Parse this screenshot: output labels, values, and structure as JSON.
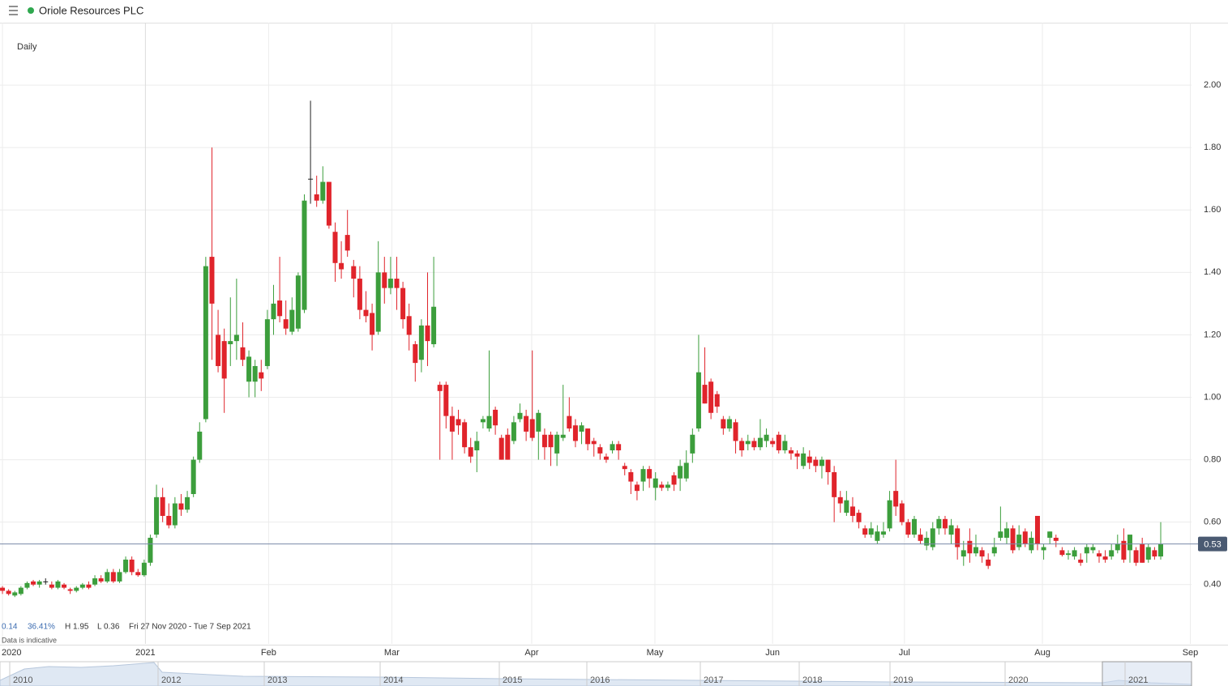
{
  "header": {
    "title": "Oriole Resources PLC",
    "interval": "Daily"
  },
  "chart_data": {
    "type": "candlestick",
    "up_color": "#3c9e3c",
    "down_color": "#e0242b",
    "doji_color": "#222222",
    "grid": true,
    "ylim": [
      0.21,
      2.2
    ],
    "yticks": [
      {
        "value": 0.4,
        "label": "0.40"
      },
      {
        "value": 0.6,
        "label": "0.60"
      },
      {
        "value": 0.8,
        "label": "0.80"
      },
      {
        "value": 1.0,
        "label": "1.00"
      },
      {
        "value": 1.2,
        "label": "1.20"
      },
      {
        "value": 1.4,
        "label": "1.40"
      },
      {
        "value": 1.6,
        "label": "1.60"
      },
      {
        "value": 1.8,
        "label": "1.80"
      },
      {
        "value": 2.0,
        "label": "2.00"
      }
    ],
    "xlim": [
      -0.4,
      193
    ],
    "xticks": [
      {
        "value": 0,
        "label": "2020"
      },
      {
        "value": 23.2,
        "label": "2021"
      },
      {
        "value": 43.2,
        "label": "Feb"
      },
      {
        "value": 63.2,
        "label": "Mar"
      },
      {
        "value": 85.9,
        "label": "Apr"
      },
      {
        "value": 105.9,
        "label": "May"
      },
      {
        "value": 125,
        "label": "Jun"
      },
      {
        "value": 146.4,
        "label": "Jul"
      },
      {
        "value": 168.8,
        "label": "Aug"
      },
      {
        "value": 192.8,
        "label": "Sep"
      }
    ],
    "last_price": 0.53,
    "ohlc": [
      [
        0.39,
        0.395,
        0.37,
        0.38
      ],
      [
        0.38,
        0.385,
        0.365,
        0.37
      ],
      [
        0.365,
        0.38,
        0.36,
        0.375
      ],
      [
        0.37,
        0.395,
        0.365,
        0.39
      ],
      [
        0.39,
        0.41,
        0.385,
        0.405
      ],
      [
        0.41,
        0.415,
        0.395,
        0.4
      ],
      [
        0.4,
        0.415,
        0.39,
        0.41
      ],
      [
        0.41,
        0.42,
        0.4,
        0.41
      ],
      [
        0.4,
        0.41,
        0.385,
        0.39
      ],
      [
        0.39,
        0.415,
        0.385,
        0.41
      ],
      [
        0.4,
        0.405,
        0.385,
        0.39
      ],
      [
        0.385,
        0.39,
        0.37,
        0.38
      ],
      [
        0.38,
        0.395,
        0.375,
        0.39
      ],
      [
        0.39,
        0.405,
        0.385,
        0.4
      ],
      [
        0.4,
        0.41,
        0.385,
        0.39
      ],
      [
        0.4,
        0.43,
        0.395,
        0.42
      ],
      [
        0.42,
        0.43,
        0.405,
        0.41
      ],
      [
        0.41,
        0.45,
        0.405,
        0.44
      ],
      [
        0.44,
        0.45,
        0.405,
        0.41
      ],
      [
        0.41,
        0.45,
        0.405,
        0.44
      ],
      [
        0.44,
        0.49,
        0.435,
        0.48
      ],
      [
        0.48,
        0.49,
        0.43,
        0.44
      ],
      [
        0.44,
        0.45,
        0.425,
        0.43
      ],
      [
        0.43,
        0.48,
        0.425,
        0.47
      ],
      [
        0.47,
        0.56,
        0.46,
        0.55
      ],
      [
        0.56,
        0.72,
        0.55,
        0.68
      ],
      [
        0.68,
        0.71,
        0.6,
        0.62
      ],
      [
        0.62,
        0.66,
        0.58,
        0.59
      ],
      [
        0.59,
        0.68,
        0.58,
        0.66
      ],
      [
        0.66,
        0.69,
        0.62,
        0.64
      ],
      [
        0.64,
        0.7,
        0.63,
        0.68
      ],
      [
        0.69,
        0.81,
        0.68,
        0.8
      ],
      [
        0.8,
        0.92,
        0.79,
        0.89
      ],
      [
        0.93,
        1.45,
        0.92,
        1.42
      ],
      [
        1.45,
        1.8,
        1.12,
        1.3
      ],
      [
        1.2,
        1.28,
        1.08,
        1.1
      ],
      [
        1.18,
        1.22,
        0.95,
        1.06
      ],
      [
        1.17,
        1.32,
        1.1,
        1.18
      ],
      [
        1.18,
        1.38,
        1.12,
        1.2
      ],
      [
        1.16,
        1.24,
        1.1,
        1.12
      ],
      [
        1.05,
        1.15,
        1.0,
        1.13
      ],
      [
        1.05,
        1.12,
        1.0,
        1.1
      ],
      [
        1.08,
        1.12,
        1.02,
        1.06
      ],
      [
        1.1,
        1.28,
        1.09,
        1.25
      ],
      [
        1.25,
        1.36,
        1.2,
        1.3
      ],
      [
        1.31,
        1.45,
        1.24,
        1.26
      ],
      [
        1.25,
        1.31,
        1.2,
        1.22
      ],
      [
        1.21,
        1.32,
        1.2,
        1.28
      ],
      [
        1.22,
        1.4,
        1.21,
        1.39
      ],
      [
        1.28,
        1.65,
        1.27,
        1.63
      ],
      [
        1.7,
        1.95,
        1.62,
        1.7
      ],
      [
        1.65,
        1.71,
        1.61,
        1.63
      ],
      [
        1.63,
        1.74,
        1.62,
        1.69
      ],
      [
        1.69,
        1.69,
        1.54,
        1.55
      ],
      [
        1.53,
        1.56,
        1.37,
        1.43
      ],
      [
        1.43,
        1.5,
        1.38,
        1.41
      ],
      [
        1.52,
        1.6,
        1.45,
        1.47
      ],
      [
        1.42,
        1.44,
        1.32,
        1.38
      ],
      [
        1.38,
        1.42,
        1.25,
        1.28
      ],
      [
        1.28,
        1.34,
        1.24,
        1.26
      ],
      [
        1.27,
        1.3,
        1.15,
        1.2
      ],
      [
        1.21,
        1.5,
        1.2,
        1.4
      ],
      [
        1.4,
        1.45,
        1.3,
        1.35
      ],
      [
        1.35,
        1.45,
        1.33,
        1.38
      ],
      [
        1.38,
        1.45,
        1.28,
        1.35
      ],
      [
        1.35,
        1.37,
        1.22,
        1.25
      ],
      [
        1.26,
        1.3,
        1.15,
        1.2
      ],
      [
        1.17,
        1.18,
        1.05,
        1.11
      ],
      [
        1.12,
        1.25,
        1.08,
        1.23
      ],
      [
        1.23,
        1.4,
        1.1,
        1.18
      ],
      [
        1.17,
        1.45,
        1.16,
        1.29
      ],
      [
        1.04,
        1.05,
        0.8,
        1.02
      ],
      [
        1.04,
        1.05,
        0.9,
        0.94
      ],
      [
        0.94,
        0.97,
        0.8,
        0.89
      ],
      [
        0.93,
        0.96,
        0.88,
        0.91
      ],
      [
        0.92,
        0.93,
        0.82,
        0.84
      ],
      [
        0.84,
        0.87,
        0.79,
        0.81
      ],
      [
        0.83,
        0.89,
        0.76,
        0.86
      ],
      [
        0.92,
        0.94,
        0.9,
        0.93
      ],
      [
        0.9,
        1.15,
        0.89,
        0.94
      ],
      [
        0.96,
        0.97,
        0.88,
        0.91
      ],
      [
        0.87,
        0.88,
        0.8,
        0.8
      ],
      [
        0.88,
        0.9,
        0.8,
        0.8
      ],
      [
        0.86,
        0.94,
        0.85,
        0.92
      ],
      [
        0.93,
        0.98,
        0.92,
        0.95
      ],
      [
        0.94,
        0.96,
        0.86,
        0.89
      ],
      [
        0.93,
        1.15,
        0.86,
        0.87
      ],
      [
        0.89,
        0.96,
        0.8,
        0.95
      ],
      [
        0.88,
        0.9,
        0.8,
        0.84
      ],
      [
        0.88,
        0.89,
        0.78,
        0.84
      ],
      [
        0.82,
        0.89,
        0.78,
        0.88
      ],
      [
        0.87,
        1.04,
        0.86,
        0.88
      ],
      [
        0.94,
        1.0,
        0.89,
        0.9
      ],
      [
        0.91,
        0.93,
        0.84,
        0.86
      ],
      [
        0.89,
        0.92,
        0.85,
        0.91
      ],
      [
        0.9,
        0.9,
        0.83,
        0.85
      ],
      [
        0.86,
        0.87,
        0.81,
        0.85
      ],
      [
        0.84,
        0.85,
        0.8,
        0.82
      ],
      [
        0.81,
        0.82,
        0.79,
        0.8
      ],
      [
        0.83,
        0.86,
        0.82,
        0.85
      ],
      [
        0.85,
        0.86,
        0.8,
        0.83
      ],
      [
        0.78,
        0.79,
        0.75,
        0.77
      ],
      [
        0.76,
        0.77,
        0.69,
        0.73
      ],
      [
        0.72,
        0.73,
        0.67,
        0.7
      ],
      [
        0.73,
        0.78,
        0.7,
        0.77
      ],
      [
        0.77,
        0.78,
        0.71,
        0.74
      ],
      [
        0.71,
        0.76,
        0.67,
        0.74
      ],
      [
        0.72,
        0.73,
        0.7,
        0.71
      ],
      [
        0.71,
        0.73,
        0.7,
        0.72
      ],
      [
        0.75,
        0.76,
        0.7,
        0.72
      ],
      [
        0.74,
        0.8,
        0.7,
        0.78
      ],
      [
        0.74,
        0.83,
        0.73,
        0.79
      ],
      [
        0.82,
        0.9,
        0.79,
        0.88
      ],
      [
        0.9,
        1.2,
        0.89,
        1.08
      ],
      [
        1.04,
        1.16,
        0.98,
        0.98
      ],
      [
        1.05,
        1.06,
        0.93,
        0.95
      ],
      [
        1.01,
        1.02,
        0.95,
        0.97
      ],
      [
        0.93,
        0.94,
        0.88,
        0.9
      ],
      [
        0.9,
        0.94,
        0.89,
        0.93
      ],
      [
        0.92,
        0.93,
        0.82,
        0.86
      ],
      [
        0.86,
        0.87,
        0.81,
        0.83
      ],
      [
        0.85,
        0.88,
        0.83,
        0.86
      ],
      [
        0.86,
        0.87,
        0.83,
        0.84
      ],
      [
        0.84,
        0.93,
        0.83,
        0.87
      ],
      [
        0.86,
        0.9,
        0.84,
        0.88
      ],
      [
        0.86,
        0.87,
        0.84,
        0.85
      ],
      [
        0.88,
        0.89,
        0.82,
        0.83
      ],
      [
        0.83,
        0.88,
        0.82,
        0.86
      ],
      [
        0.83,
        0.84,
        0.8,
        0.82
      ],
      [
        0.82,
        0.83,
        0.77,
        0.81
      ],
      [
        0.78,
        0.84,
        0.77,
        0.82
      ],
      [
        0.81,
        0.83,
        0.77,
        0.79
      ],
      [
        0.8,
        0.81,
        0.76,
        0.78
      ],
      [
        0.78,
        0.81,
        0.74,
        0.8
      ],
      [
        0.8,
        0.8,
        0.72,
        0.76
      ],
      [
        0.76,
        0.78,
        0.6,
        0.68
      ],
      [
        0.68,
        0.7,
        0.63,
        0.66
      ],
      [
        0.63,
        0.7,
        0.62,
        0.67
      ],
      [
        0.65,
        0.68,
        0.6,
        0.62
      ],
      [
        0.63,
        0.64,
        0.58,
        0.6
      ],
      [
        0.58,
        0.59,
        0.55,
        0.56
      ],
      [
        0.56,
        0.6,
        0.55,
        0.58
      ],
      [
        0.54,
        0.59,
        0.53,
        0.57
      ],
      [
        0.56,
        0.6,
        0.55,
        0.57
      ],
      [
        0.58,
        0.7,
        0.57,
        0.67
      ],
      [
        0.7,
        0.8,
        0.62,
        0.65
      ],
      [
        0.66,
        0.67,
        0.59,
        0.6
      ],
      [
        0.6,
        0.61,
        0.55,
        0.56
      ],
      [
        0.56,
        0.62,
        0.55,
        0.61
      ],
      [
        0.56,
        0.58,
        0.53,
        0.54
      ],
      [
        0.525,
        0.57,
        0.51,
        0.55
      ],
      [
        0.52,
        0.6,
        0.51,
        0.58
      ],
      [
        0.58,
        0.62,
        0.56,
        0.61
      ],
      [
        0.61,
        0.62,
        0.56,
        0.58
      ],
      [
        0.56,
        0.61,
        0.53,
        0.59
      ],
      [
        0.58,
        0.59,
        0.48,
        0.52
      ],
      [
        0.49,
        0.54,
        0.46,
        0.51
      ],
      [
        0.54,
        0.58,
        0.47,
        0.5
      ],
      [
        0.5,
        0.56,
        0.49,
        0.52
      ],
      [
        0.51,
        0.52,
        0.47,
        0.49
      ],
      [
        0.48,
        0.5,
        0.45,
        0.46
      ],
      [
        0.5,
        0.55,
        0.49,
        0.52
      ],
      [
        0.55,
        0.65,
        0.54,
        0.57
      ],
      [
        0.55,
        0.6,
        0.53,
        0.58
      ],
      [
        0.58,
        0.59,
        0.5,
        0.51
      ],
      [
        0.52,
        0.59,
        0.51,
        0.56
      ],
      [
        0.57,
        0.58,
        0.52,
        0.53
      ],
      [
        0.51,
        0.57,
        0.5,
        0.55
      ],
      [
        0.62,
        0.62,
        0.51,
        0.53
      ],
      [
        0.51,
        0.53,
        0.48,
        0.52
      ],
      [
        0.55,
        0.57,
        0.53,
        0.57
      ],
      [
        0.55,
        0.56,
        0.52,
        0.54
      ],
      [
        0.51,
        0.52,
        0.49,
        0.495
      ],
      [
        0.495,
        0.51,
        0.48,
        0.5
      ],
      [
        0.49,
        0.52,
        0.48,
        0.51
      ],
      [
        0.48,
        0.5,
        0.46,
        0.47
      ],
      [
        0.5,
        0.53,
        0.47,
        0.52
      ],
      [
        0.51,
        0.53,
        0.5,
        0.52
      ],
      [
        0.5,
        0.51,
        0.47,
        0.49
      ],
      [
        0.49,
        0.51,
        0.47,
        0.48
      ],
      [
        0.49,
        0.53,
        0.48,
        0.51
      ],
      [
        0.51,
        0.56,
        0.5,
        0.53
      ],
      [
        0.54,
        0.58,
        0.47,
        0.48
      ],
      [
        0.51,
        0.56,
        0.47,
        0.56
      ],
      [
        0.51,
        0.52,
        0.46,
        0.47
      ],
      [
        0.53,
        0.55,
        0.47,
        0.47
      ],
      [
        0.48,
        0.53,
        0.47,
        0.52
      ],
      [
        0.51,
        0.52,
        0.48,
        0.49
      ],
      [
        0.49,
        0.6,
        0.48,
        0.53
      ]
    ]
  },
  "stats": {
    "change": "0.14",
    "change_pct": "36.41%",
    "high": "H 1.95",
    "low": "L 0.36",
    "range": "Fri 27 Nov 2020 - Tue 7 Sep 2021",
    "note": "Data is indicative"
  },
  "navigator": {
    "years": [
      "2010",
      "2012",
      "2013",
      "2014",
      "2015",
      "2016",
      "2017",
      "2018",
      "2019",
      "2020",
      "2021"
    ]
  }
}
